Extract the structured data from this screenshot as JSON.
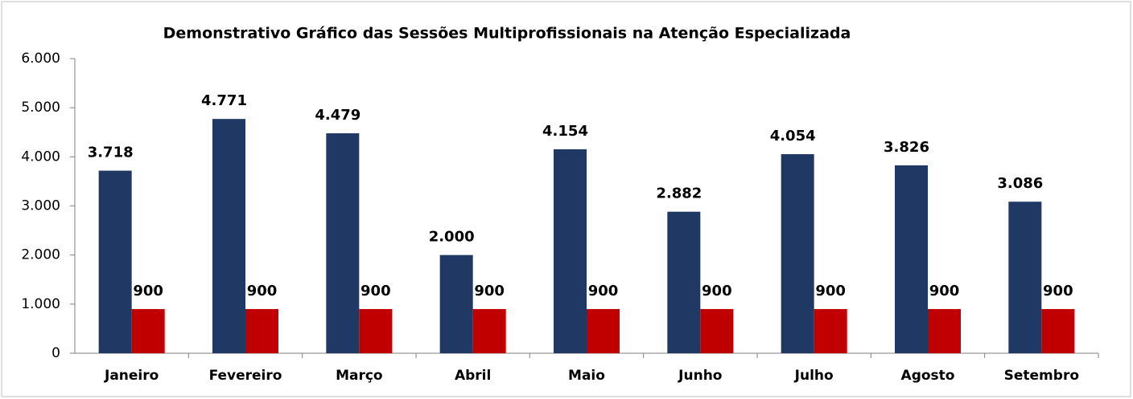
{
  "chart_data": {
    "type": "bar",
    "title": "Demonstrativo Gráfico das Sessões Multiprofissionais na Atenção Especializada",
    "categories": [
      "Janeiro",
      "Fevereiro",
      "Março",
      "Abril",
      "Maio",
      "Junho",
      "Julho",
      "Agosto",
      "Setembro"
    ],
    "series": [
      {
        "color": "#1f3864",
        "values": [
          3718,
          4771,
          4479,
          2000,
          4154,
          2882,
          4054,
          3826,
          3086
        ],
        "value_labels": [
          "3.718",
          "4.771",
          "4.479",
          "2.000",
          "4.154",
          "2.882",
          "4.054",
          "3.826",
          "3.086"
        ]
      },
      {
        "color": "#c00000",
        "values": [
          900,
          900,
          900,
          900,
          900,
          900,
          900,
          900,
          900
        ]
      }
    ],
    "ylim": [
      0,
      6000
    ],
    "yticks": [
      0,
      {
        "value": 1000,
        "label": "1.000"
      },
      {
        "value": 2000,
        "label": "2.000"
      },
      {
        "value": 3000,
        "label": "3.000"
      },
      {
        "value": 4000,
        "label": "4.000"
      },
      {
        "value": 5000,
        "label": "5.000"
      },
      {
        "value": 6000,
        "label": "6.000"
      }
    ],
    "grid": false
  }
}
